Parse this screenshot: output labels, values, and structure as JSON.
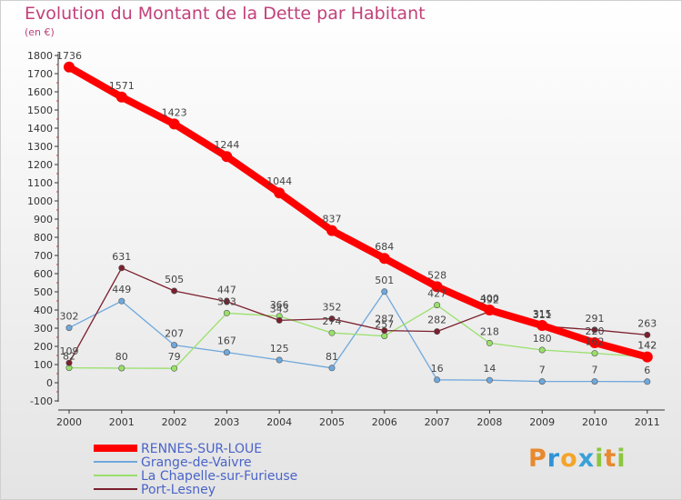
{
  "header": {
    "title": "Evolution du Montant de la Dette par Habitant",
    "subtitle": "(en €)"
  },
  "logo": {
    "text": "Proxiti",
    "letters": [
      "P",
      "r",
      "o",
      "x",
      "i",
      "t",
      "i"
    ],
    "colors": [
      "#e8892e",
      "#2f93d6",
      "#f3a52b",
      "#3aa0d8",
      "#8cc63f",
      "#e8892e",
      "#8cc63f"
    ]
  },
  "chart_data": {
    "type": "line",
    "title": "Evolution du Montant de la Dette par Habitant",
    "subtitle": "(en €)",
    "xlabel": "",
    "ylabel": "",
    "ylim": [
      -100,
      1800
    ],
    "yticks": [
      -100,
      0,
      100,
      200,
      300,
      400,
      500,
      600,
      700,
      800,
      900,
      1000,
      1100,
      1200,
      1300,
      1400,
      1500,
      1600,
      1700,
      1800
    ],
    "grid": false,
    "legend": "bottom-left",
    "x": [
      "2000",
      "2001",
      "2002",
      "2003",
      "2004",
      "2005",
      "2006",
      "2007",
      "2008",
      "2009",
      "2010",
      "2011"
    ],
    "series": [
      {
        "name": "RENNES-SUR-LOUE",
        "color": "#ff0000",
        "values": [
          1736,
          1571,
          1423,
          1244,
          1044,
          837,
          684,
          528,
          400,
          315,
          220,
          142
        ]
      },
      {
        "name": "Grange-de-Vaivre",
        "color": "#6fa8dc",
        "values": [
          302,
          449,
          207,
          167,
          125,
          81,
          501,
          16,
          14,
          7,
          7,
          6
        ]
      },
      {
        "name": "La Chapelle-sur-Furieuse",
        "color": "#99e06b",
        "values": [
          82,
          80,
          79,
          383,
          366,
          274,
          257,
          427,
          218,
          180,
          162,
          142
        ]
      },
      {
        "name": "Port-Lesney",
        "color": "#7b1f2e",
        "values": [
          109,
          631,
          505,
          447,
          343,
          352,
          287,
          282,
          392,
          311,
          291,
          263
        ]
      }
    ]
  }
}
